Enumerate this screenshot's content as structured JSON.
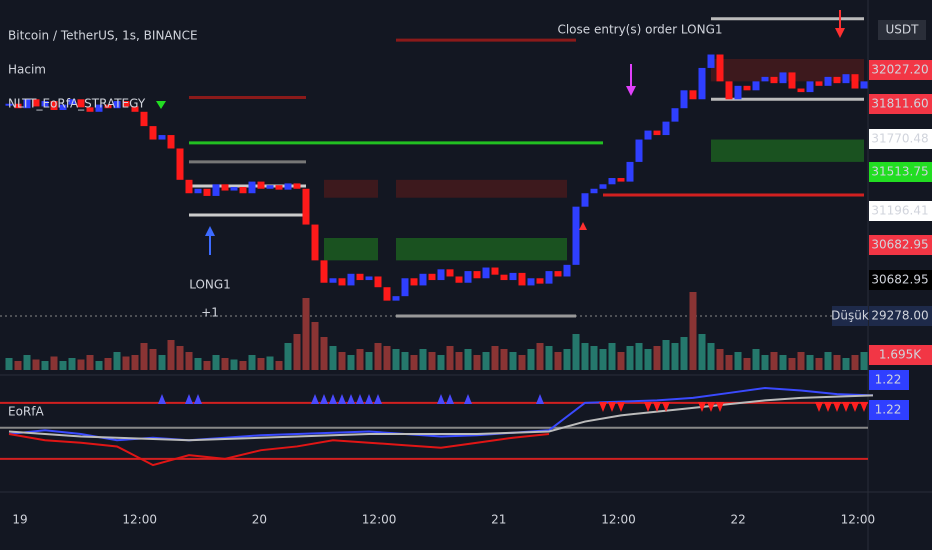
{
  "header": {
    "symbol": "Bitcoin / TetherUS, 1s, BINANCE",
    "volume_label": "Hacim",
    "strategy": "NLTT_EoRfA_STRATEGY"
  },
  "annotations": {
    "entry": "LONG1",
    "entry_qty": "+1",
    "exit": "Close entry(s) order LONG1"
  },
  "price_axis": {
    "currency": "USDT",
    "labels": [
      {
        "text": "32027.20",
        "bg": "#f23645",
        "fg": "#ffffff"
      },
      {
        "text": "31811.60",
        "bg": "#f23645",
        "fg": "#ffffff"
      },
      {
        "text": "31770.48",
        "bg": "#ffffff",
        "fg": "#131722"
      },
      {
        "text": "31513.75",
        "bg": "#22dd22",
        "fg": "#131722"
      },
      {
        "text": "31196.41",
        "bg": "#ffffff",
        "fg": "#131722"
      },
      {
        "text": "30682.95",
        "bg": "#f23645",
        "fg": "#ffffff"
      },
      {
        "text": "30682.95",
        "bg": "#000000",
        "fg": "#ffffff"
      }
    ],
    "low_tag": "Düşük",
    "low": "29278.00",
    "volume": "1.695K",
    "osc": [
      "1.22",
      "1.22"
    ]
  },
  "time_axis": [
    "19",
    "12:00",
    "20",
    "12:00",
    "21",
    "12:00",
    "22",
    "12:00"
  ],
  "chart_data": {
    "type": "candlestick",
    "ylim": [
      29122,
      32809
    ],
    "up_color": "#2f3fff",
    "down_color": "#ff1a1a",
    "closes": [
      31650,
      31600,
      31700,
      31620,
      31680,
      31580,
      31640,
      31700,
      31610,
      31560,
      31640,
      31600,
      31680,
      31620,
      31560,
      31400,
      31250,
      31300,
      31150,
      30800,
      30650,
      30700,
      30620,
      30750,
      30680,
      30720,
      30650,
      30780,
      30700,
      30740,
      30690,
      30760,
      30700,
      30300,
      29900,
      29650,
      29700,
      29620,
      29750,
      29680,
      29720,
      29600,
      29450,
      29500,
      29700,
      29620,
      29750,
      29680,
      29800,
      29720,
      29650,
      29780,
      29700,
      29820,
      29740,
      29680,
      29760,
      29620,
      29700,
      29640,
      29780,
      29720,
      29850,
      30500,
      30650,
      30700,
      30750,
      30820,
      30780,
      31000,
      31250,
      31350,
      31300,
      31450,
      31600,
      31800,
      31700,
      32050,
      32200,
      31900,
      31700,
      31850,
      31800,
      31900,
      31950,
      31880,
      32000,
      31820,
      31780,
      31900,
      31850,
      31950,
      31880,
      31980,
      31820,
      31900
    ],
    "volumes": [
      0.4,
      0.3,
      0.5,
      0.35,
      0.3,
      0.45,
      0.3,
      0.4,
      0.35,
      0.5,
      0.3,
      0.4,
      0.6,
      0.45,
      0.5,
      0.9,
      0.7,
      0.5,
      1.0,
      0.8,
      0.6,
      0.4,
      0.3,
      0.5,
      0.4,
      0.35,
      0.3,
      0.5,
      0.4,
      0.45,
      0.3,
      0.9,
      1.2,
      2.4,
      1.6,
      1.1,
      0.8,
      0.6,
      0.5,
      0.7,
      0.6,
      0.9,
      0.8,
      0.7,
      0.6,
      0.5,
      0.7,
      0.6,
      0.5,
      0.8,
      0.6,
      0.7,
      0.5,
      0.6,
      0.8,
      0.7,
      0.6,
      0.5,
      0.7,
      0.9,
      0.8,
      0.6,
      0.7,
      1.2,
      0.9,
      0.8,
      0.7,
      0.9,
      0.6,
      0.8,
      0.9,
      0.7,
      0.8,
      1.0,
      0.9,
      1.1,
      2.6,
      1.2,
      0.9,
      0.7,
      0.5,
      0.6,
      0.4,
      0.7,
      0.5,
      0.6,
      0.5,
      0.4,
      0.6,
      0.5,
      0.4,
      0.6,
      0.5,
      0.4,
      0.5,
      0.6
    ],
    "levels": [
      {
        "price": 31212,
        "from": 20,
        "to": 66,
        "color": "#22c022"
      },
      {
        "price": 30630,
        "from": 66,
        "to": 95,
        "color": "#d12020"
      },
      {
        "price": 30731,
        "from": 20,
        "to": 33,
        "color": "#cccccc"
      },
      {
        "price": 30407,
        "from": 20,
        "to": 33,
        "color": "#cccccc"
      },
      {
        "price": 31000,
        "from": 20,
        "to": 33,
        "color": "#777777"
      },
      {
        "price": 29278,
        "from": 43,
        "to": 63,
        "color": "#999999"
      },
      {
        "price": 32360,
        "from": 43,
        "to": 63,
        "color": "#8b1a1a"
      },
      {
        "price": 31720,
        "from": 20,
        "to": 33,
        "color": "#8b1a1a"
      },
      {
        "price": 32600,
        "from": 78,
        "to": 95,
        "color": "#bbbbbb"
      },
      {
        "price": 31700,
        "from": 78,
        "to": 95,
        "color": "#bbbbbb"
      }
    ],
    "zones": [
      {
        "from": 35,
        "to": 41,
        "low": 29900,
        "high": 30150,
        "color": "#1f7a1f"
      },
      {
        "from": 43,
        "to": 62,
        "low": 29900,
        "high": 30150,
        "color": "#1f7a1f"
      },
      {
        "from": 35,
        "to": 41,
        "low": 30600,
        "high": 30800,
        "color": "#5a1a1a"
      },
      {
        "from": 43,
        "to": 62,
        "low": 30600,
        "high": 30800,
        "color": "#5a1a1a"
      },
      {
        "from": 78,
        "to": 95,
        "low": 31000,
        "high": 31250,
        "color": "#1f7a1f"
      },
      {
        "from": 78,
        "to": 95,
        "low": 31900,
        "high": 32150,
        "color": "#5a1a1a"
      }
    ],
    "oscillator": {
      "title": "EoRfA",
      "ylim": [
        0.5,
        1.4
      ],
      "step": 4,
      "levels": [
        {
          "value": 1.2,
          "color": "#d12020"
        },
        {
          "value": 1.0,
          "color": "#888888"
        },
        {
          "value": 0.75,
          "color": "#d12020"
        }
      ],
      "series": [
        {
          "name": "blue",
          "color": "#3a4aff",
          "values": [
            0.95,
            0.98,
            0.95,
            0.9,
            0.92,
            0.9,
            0.92,
            0.94,
            0.95,
            0.96,
            0.97,
            0.95,
            0.93,
            0.94,
            0.96,
            0.98,
            1.2,
            1.21,
            1.22,
            1.24,
            1.28,
            1.32,
            1.3,
            1.27,
            1.26
          ]
        },
        {
          "name": "signal",
          "color": "#bbbbbb",
          "values": [
            0.97,
            0.95,
            0.93,
            0.92,
            0.91,
            0.9,
            0.91,
            0.92,
            0.93,
            0.94,
            0.95,
            0.95,
            0.95,
            0.95,
            0.96,
            0.97,
            1.05,
            1.1,
            1.13,
            1.16,
            1.19,
            1.22,
            1.24,
            1.25,
            1.26
          ]
        },
        {
          "name": "red",
          "color": "#e01515",
          "values": [
            0.95,
            0.9,
            0.88,
            0.85,
            0.7,
            0.78,
            0.75,
            0.82,
            0.85,
            0.9,
            0.88,
            0.86,
            0.84,
            0.88,
            0.92,
            0.95,
            null,
            null,
            null,
            null,
            null,
            null,
            null,
            null,
            null
          ]
        }
      ],
      "buy_signals": [
        17,
        20,
        21,
        34,
        35,
        36,
        37,
        38,
        39,
        40,
        41,
        48,
        49,
        51,
        59
      ],
      "sell_signals": [
        66,
        67,
        68,
        71,
        72,
        73,
        77,
        78,
        79,
        90,
        91,
        92,
        93,
        94,
        95
      ]
    }
  }
}
